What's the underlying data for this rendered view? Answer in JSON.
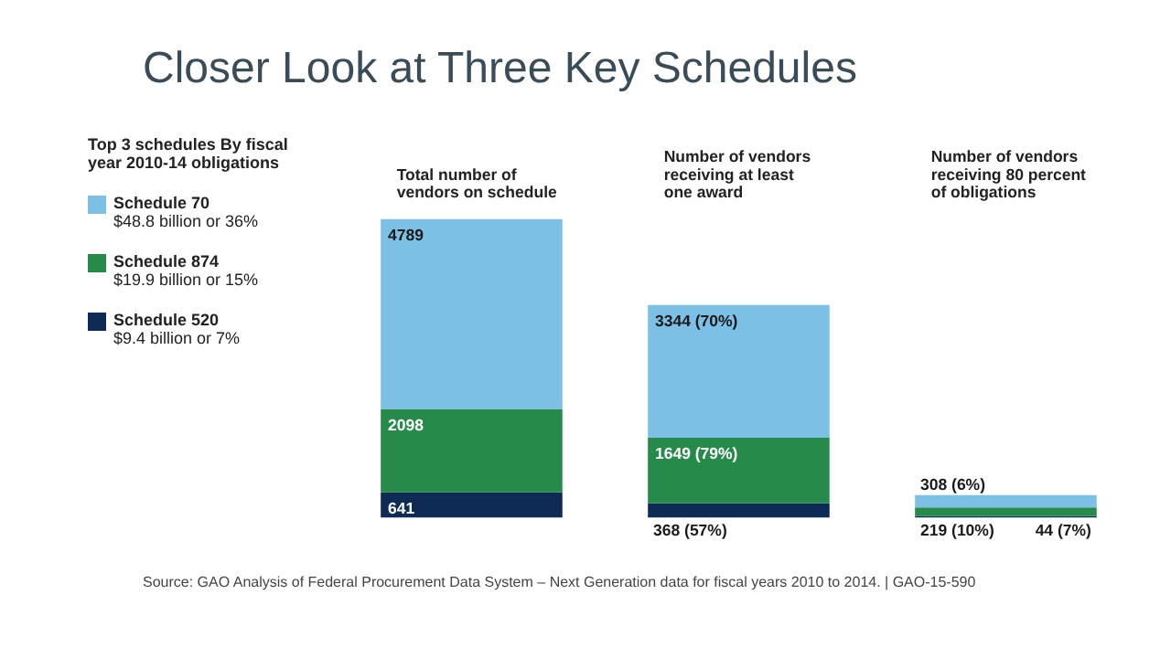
{
  "chart_data": {
    "type": "bar",
    "title": "Closer Look at Three Key Schedules",
    "legend_title": "Top 3 schedules By fiscal year 2010-14 obligations",
    "categories": [
      "Total number of vendors on schedule",
      "Number of vendors receiving at least one award",
      "Number of vendors receiving 80 percent of obligations"
    ],
    "stacked": true,
    "series": [
      {
        "name": "Schedule 520",
        "color": "#0d2b55",
        "values": [
          641,
          368,
          44
        ],
        "value_labels": [
          "641",
          "368 (57%)",
          "44 (7%)"
        ]
      },
      {
        "name": "Schedule 874",
        "color": "#268a4b",
        "values": [
          2098,
          1649,
          219
        ],
        "value_labels": [
          "2098",
          "1649 (79%)",
          "219 (10%)"
        ]
      },
      {
        "name": "Schedule 70",
        "color": "#7cc0e6",
        "values": [
          4789,
          3344,
          308
        ],
        "value_labels": [
          "4789",
          "3344 (70%)",
          "308 (6%)"
        ]
      }
    ],
    "annotations": [
      "$9.4 billion or 7%",
      "$19.9 billion or 15%",
      "$48.8 billion or 36%",
      "Source: GAO Analysis of Federal Procurement Data System – Next Generation data for fiscal years 2010 to 2014. | GAO-15-590"
    ],
    "legend": "left",
    "tick_labels": "x"
  }
}
